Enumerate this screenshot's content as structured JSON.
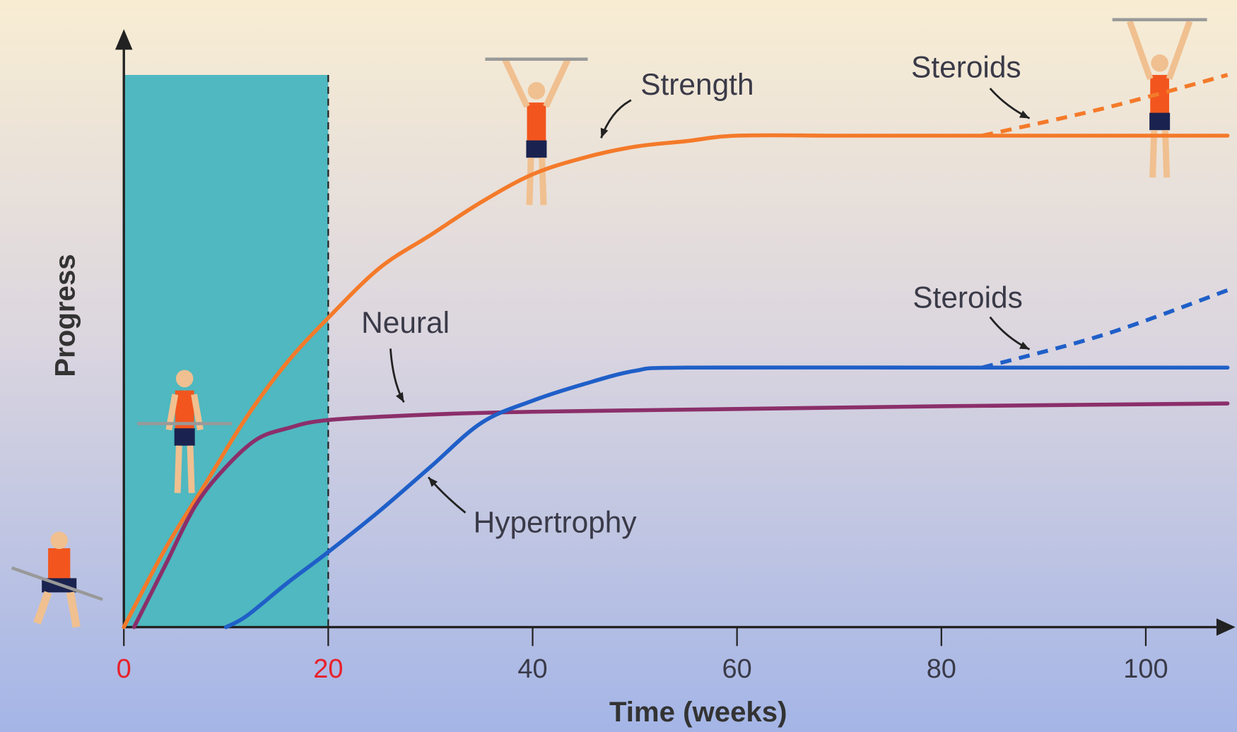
{
  "chart_data": {
    "type": "line",
    "xlabel": "Time (weeks)",
    "ylabel": "Progress",
    "xlim": [
      0,
      108
    ],
    "ylim": [
      0,
      108
    ],
    "xticks": [
      0,
      20,
      40,
      60,
      80,
      100
    ],
    "highlight": {
      "x": [
        0,
        20
      ],
      "top": 100,
      "color": "#4fb8c0",
      "tick_color": "#e8202a"
    },
    "series": [
      {
        "name": "Strength",
        "color": "#f47a2a",
        "dashed": false,
        "x": [
          0,
          4,
          8,
          12,
          16,
          20,
          25,
          30,
          35,
          40,
          45,
          50,
          55,
          60,
          70,
          80,
          90,
          100,
          108
        ],
        "values": [
          0,
          14,
          26,
          38,
          48,
          56,
          65,
          71,
          77,
          82,
          85,
          87,
          88,
          89,
          89,
          89,
          89,
          89,
          89
        ]
      },
      {
        "name": "Neural",
        "color": "#8b2f6a",
        "dashed": false,
        "x": [
          1,
          4,
          7,
          10,
          13,
          16,
          20,
          30,
          40,
          60,
          80,
          108
        ],
        "values": [
          0,
          11,
          22,
          29,
          34,
          36,
          37.5,
          38.5,
          39,
          39.5,
          40,
          40.5
        ]
      },
      {
        "name": "Hypertrophy",
        "color": "#1f5fc8",
        "dashed": false,
        "x": [
          10,
          12,
          16,
          20,
          25,
          30,
          35,
          40,
          45,
          50,
          55,
          80,
          108
        ],
        "values": [
          0,
          2,
          8,
          13.6,
          21,
          29,
          37,
          41,
          44,
          46.4,
          47,
          47,
          47
        ]
      },
      {
        "name": "Steroids",
        "color": "#f47a2a",
        "dashed": true,
        "x": [
          84,
          96,
          108
        ],
        "values": [
          89,
          94,
          100
        ]
      },
      {
        "name": "Steroids",
        "color": "#1f5fc8",
        "dashed": true,
        "x": [
          84,
          96,
          108
        ],
        "values": [
          47,
          53,
          61
        ]
      }
    ]
  }
}
